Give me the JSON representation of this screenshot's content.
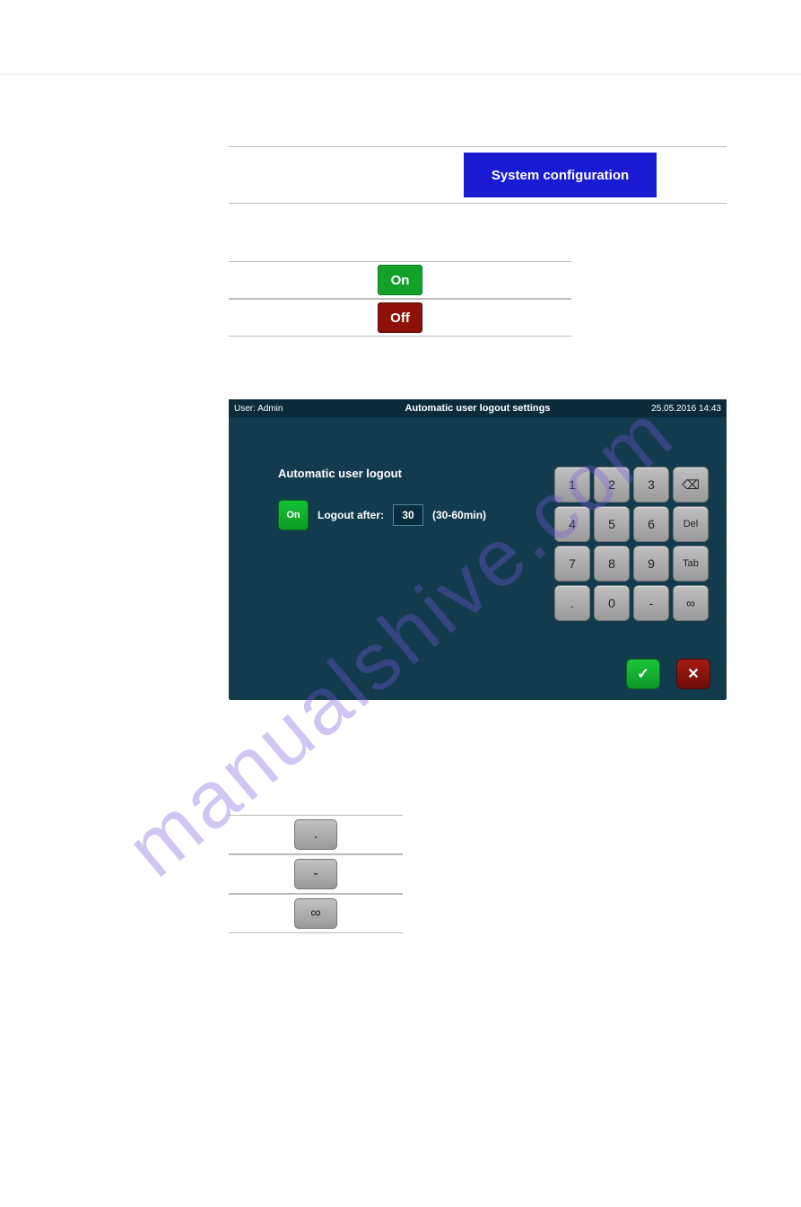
{
  "watermark": "manualshive.com",
  "sysconf": {
    "label": "System configuration",
    "bg": "#1a1ad1",
    "fg": "#ffffff"
  },
  "toggles": {
    "on": {
      "label": "On",
      "bg": "#12a22a"
    },
    "off": {
      "label": "Off",
      "bg": "#8d1108"
    }
  },
  "device": {
    "bg": "#123b4e",
    "bar_bg": "#0b2b3a",
    "user": "User: Admin",
    "title": "Automatic user logout settings",
    "datetime": "25.05.2016  14:43",
    "section_title": "Automatic user logout",
    "on_label": "On",
    "logout_label": "Logout after:",
    "value": "30",
    "range": "(30-60min)",
    "keypad": {
      "keys": [
        "1",
        "2",
        "3",
        "⌫",
        "4",
        "5",
        "6",
        "Del",
        "7",
        "8",
        "9",
        "Tab",
        ".",
        "0",
        "-",
        "∞"
      ],
      "key_bg": "#b0b0b0"
    },
    "ok_icon": "✓",
    "cancel_icon": "✕"
  },
  "mini_keys": {
    "dot": ".",
    "minus": "-",
    "inf": "∞"
  }
}
